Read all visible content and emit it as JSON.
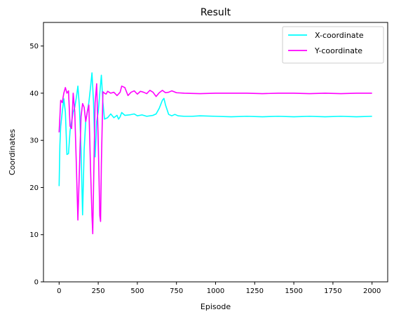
{
  "chart_data": {
    "type": "line",
    "title": "Result",
    "xlabel": "Episode",
    "ylabel": "Coordinates",
    "xlim": [
      -100,
      2100
    ],
    "ylim": [
      0,
      55
    ],
    "xticks": [
      0,
      250,
      500,
      750,
      1000,
      1250,
      1500,
      1750,
      2000
    ],
    "yticks": [
      0,
      10,
      20,
      30,
      40,
      50
    ],
    "grid": false,
    "legend_position": "top-right",
    "series": [
      {
        "name": "X-coordinate",
        "color": "#00ffff",
        "points": [
          [
            0,
            20.3
          ],
          [
            5,
            29
          ],
          [
            10,
            33
          ],
          [
            20,
            36
          ],
          [
            30,
            38.8
          ],
          [
            40,
            36
          ],
          [
            50,
            27
          ],
          [
            60,
            27.2
          ],
          [
            70,
            32
          ],
          [
            80,
            34
          ],
          [
            90,
            36
          ],
          [
            100,
            37
          ],
          [
            110,
            39
          ],
          [
            120,
            41.5
          ],
          [
            130,
            37
          ],
          [
            140,
            28
          ],
          [
            150,
            14.2
          ],
          [
            160,
            28
          ],
          [
            170,
            34
          ],
          [
            180,
            36
          ],
          [
            190,
            38
          ],
          [
            200,
            41
          ],
          [
            210,
            44.3
          ],
          [
            220,
            38
          ],
          [
            230,
            26.5
          ],
          [
            240,
            34
          ],
          [
            250,
            36
          ],
          [
            260,
            40
          ],
          [
            270,
            43.8
          ],
          [
            280,
            38
          ],
          [
            290,
            34.5
          ],
          [
            310,
            34.8
          ],
          [
            330,
            35.6
          ],
          [
            350,
            34.8
          ],
          [
            370,
            35.3
          ],
          [
            380,
            34.5
          ],
          [
            390,
            35
          ],
          [
            400,
            35.9
          ],
          [
            420,
            35.3
          ],
          [
            450,
            35.4
          ],
          [
            480,
            35.6
          ],
          [
            500,
            35.2
          ],
          [
            530,
            35.4
          ],
          [
            560,
            35.1
          ],
          [
            600,
            35.3
          ],
          [
            620,
            35.6
          ],
          [
            640,
            36.8
          ],
          [
            660,
            38.5
          ],
          [
            670,
            38.9
          ],
          [
            680,
            37.5
          ],
          [
            700,
            35.5
          ],
          [
            720,
            35.2
          ],
          [
            740,
            35.5
          ],
          [
            760,
            35.2
          ],
          [
            800,
            35.1
          ],
          [
            850,
            35.1
          ],
          [
            900,
            35.2
          ],
          [
            1000,
            35.1
          ],
          [
            1100,
            35.0
          ],
          [
            1200,
            35.1
          ],
          [
            1300,
            35.0
          ],
          [
            1400,
            35.1
          ],
          [
            1500,
            35.0
          ],
          [
            1600,
            35.1
          ],
          [
            1700,
            35.0
          ],
          [
            1800,
            35.1
          ],
          [
            1900,
            35.0
          ],
          [
            2000,
            35.1
          ]
        ]
      },
      {
        "name": "Y-coordinate",
        "color": "#ff00ff",
        "points": [
          [
            0,
            31.7
          ],
          [
            5,
            35
          ],
          [
            10,
            38.5
          ],
          [
            20,
            38
          ],
          [
            30,
            40
          ],
          [
            40,
            41.2
          ],
          [
            50,
            40
          ],
          [
            60,
            40.5
          ],
          [
            70,
            33
          ],
          [
            80,
            32.5
          ],
          [
            90,
            40
          ],
          [
            100,
            36
          ],
          [
            110,
            25
          ],
          [
            120,
            13.1
          ],
          [
            130,
            24
          ],
          [
            140,
            35
          ],
          [
            150,
            37.8
          ],
          [
            160,
            37
          ],
          [
            170,
            34
          ],
          [
            180,
            36
          ],
          [
            190,
            37.5
          ],
          [
            200,
            25
          ],
          [
            210,
            14
          ],
          [
            215,
            10.2
          ],
          [
            220,
            20
          ],
          [
            230,
            38
          ],
          [
            240,
            42
          ],
          [
            250,
            30
          ],
          [
            260,
            14
          ],
          [
            265,
            12.8
          ],
          [
            270,
            25
          ],
          [
            280,
            40.3
          ],
          [
            290,
            40
          ],
          [
            300,
            39.8
          ],
          [
            310,
            40.4
          ],
          [
            330,
            40
          ],
          [
            350,
            40.2
          ],
          [
            370,
            39.5
          ],
          [
            390,
            40.2
          ],
          [
            400,
            41.5
          ],
          [
            420,
            41.2
          ],
          [
            440,
            39.5
          ],
          [
            460,
            40.2
          ],
          [
            480,
            40.5
          ],
          [
            500,
            39.8
          ],
          [
            520,
            40.4
          ],
          [
            540,
            40.2
          ],
          [
            560,
            39.9
          ],
          [
            580,
            40.6
          ],
          [
            600,
            40.2
          ],
          [
            620,
            39.3
          ],
          [
            640,
            40.1
          ],
          [
            660,
            40.6
          ],
          [
            680,
            40.1
          ],
          [
            700,
            40.2
          ],
          [
            720,
            40.5
          ],
          [
            750,
            40.1
          ],
          [
            800,
            40.0
          ],
          [
            900,
            39.9
          ],
          [
            1000,
            40.0
          ],
          [
            1100,
            40.0
          ],
          [
            1200,
            40.0
          ],
          [
            1300,
            39.9
          ],
          [
            1400,
            40.0
          ],
          [
            1500,
            40.0
          ],
          [
            1600,
            39.9
          ],
          [
            1700,
            40.0
          ],
          [
            1800,
            39.9
          ],
          [
            1900,
            40.0
          ],
          [
            2000,
            40.0
          ]
        ]
      }
    ]
  }
}
